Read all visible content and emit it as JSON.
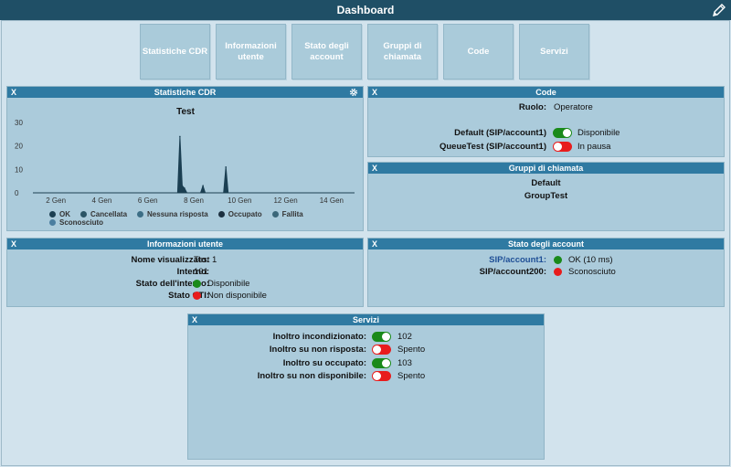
{
  "header": {
    "title": "Dashboard",
    "edit_icon": "pencil-icon"
  },
  "tiles": [
    "Statistiche CDR",
    "Informazioni utente",
    "Stato degli account",
    "Gruppi di chiamata",
    "Code",
    "Servizi"
  ],
  "colors": {
    "header_bg": "#1f4f66",
    "panel_head": "#2f7aa2",
    "green": "#1a8a1a",
    "red": "#e81c1c",
    "chart_line": "#1b3f52"
  },
  "cdr": {
    "title": "Statistiche CDR",
    "close": "X",
    "settings_icon": "gear-icon",
    "chart_title": "Test",
    "legend": [
      {
        "label": "OK",
        "color": "#1b3f52"
      },
      {
        "label": "Cancellata",
        "color": "#2b5566"
      },
      {
        "label": "Nessuna risposta",
        "color": "#3c6e86"
      },
      {
        "label": "Occupato",
        "color": "#1c3040"
      },
      {
        "label": "Fallita",
        "color": "#3b6779"
      },
      {
        "label": "Sconosciuto",
        "color": "#4a7ea0"
      }
    ]
  },
  "chart_data": {
    "type": "area",
    "title": "Test",
    "xlabel": "",
    "ylabel": "",
    "x_tick_labels": [
      "2 Gen",
      "4 Gen",
      "6 Gen",
      "8 Gen",
      "10 Gen",
      "12 Gen",
      "14 Gen"
    ],
    "x_tick_days": [
      2,
      4,
      6,
      8,
      10,
      12,
      14
    ],
    "xlim": [
      1,
      15
    ],
    "y_ticks": [
      0,
      10,
      20,
      30
    ],
    "ylim": [
      0,
      30
    ],
    "series": [
      {
        "name": "OK",
        "x": [
          1,
          7.3,
          7.4,
          7.5,
          7.6,
          7.7,
          8.3,
          8.4,
          8.5,
          9.3,
          9.4,
          9.5,
          15
        ],
        "y": [
          0,
          0,
          24,
          3,
          2,
          0,
          0,
          3,
          0,
          0,
          11,
          0,
          0
        ]
      }
    ]
  },
  "code": {
    "title": "Code",
    "close": "X",
    "role_label": "Ruolo:",
    "role_value": "Operatore",
    "queues": [
      {
        "name": "Default (SIP/account1)",
        "state": "on",
        "status": "Disponibile"
      },
      {
        "name": "QueueTest (SIP/account1)",
        "state": "off",
        "status": "In pausa"
      }
    ]
  },
  "gruppi": {
    "title": "Gruppi di chiamata",
    "close": "X",
    "items": [
      "Default",
      "GroupTest"
    ]
  },
  "info": {
    "title": "Informazioni utente",
    "close": "X",
    "display_name_label": "Nome visualizzato:",
    "display_name": "Test 1",
    "extension_label": "Interno:",
    "extension": "101",
    "ext_state_label": "Stato dell'interno:",
    "ext_state": "Disponibile",
    "cti_label": "Stato CTI:",
    "cti_state": "Non disponibile"
  },
  "accounts": {
    "title": "Stato degli account",
    "close": "X",
    "items": [
      {
        "name": "SIP/account1:",
        "status": "OK (10 ms)",
        "color": "#1a8a1a",
        "link": true
      },
      {
        "name": "SIP/account200:",
        "status": "Sconosciuto",
        "color": "#e81c1c",
        "link": false
      }
    ]
  },
  "servizi": {
    "title": "Servizi",
    "close": "X",
    "items": [
      {
        "label": "Inoltro incondizionato:",
        "state": "on",
        "value": "102"
      },
      {
        "label": "Inoltro su non risposta:",
        "state": "off",
        "value": "Spento"
      },
      {
        "label": "Inoltro su occupato:",
        "state": "on",
        "value": "103"
      },
      {
        "label": "Inoltro su non disponibile:",
        "state": "off",
        "value": "Spento"
      }
    ]
  }
}
